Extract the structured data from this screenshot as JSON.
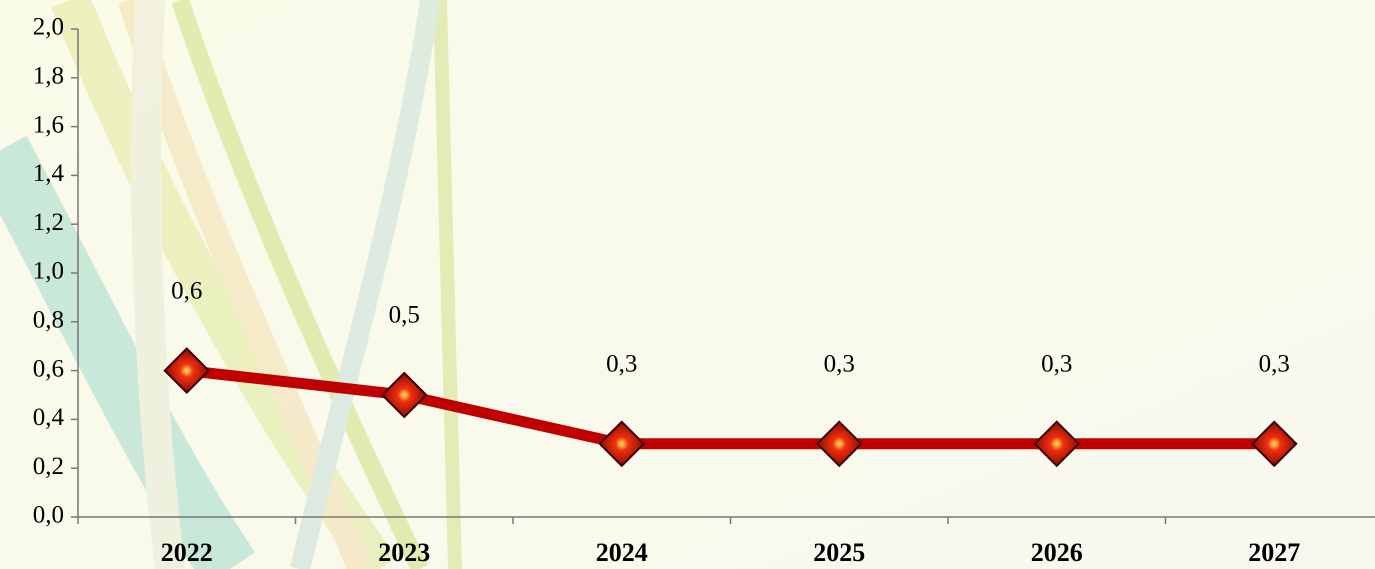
{
  "chart_data": {
    "type": "line",
    "categories": [
      "2022",
      "2023",
      "2024",
      "2025",
      "2026",
      "2027"
    ],
    "values": [
      0.6,
      0.5,
      0.3,
      0.3,
      0.3,
      0.3
    ],
    "value_labels": [
      "0,6",
      "0,5",
      "0,3",
      "0,3",
      "0,3",
      "0,3"
    ],
    "color": "#c00000",
    "ylim": [
      0,
      2.0
    ],
    "yticks": [
      {
        "value": 0,
        "label": "0,0"
      },
      {
        "value": 0.2,
        "label": "0,2"
      },
      {
        "value": 0.4,
        "label": "0,4"
      },
      {
        "value": 0.6,
        "label": "0,6"
      },
      {
        "value": 0.8,
        "label": "0,8"
      },
      {
        "value": 1.0,
        "label": "1,0"
      },
      {
        "value": 1.2,
        "label": "1,2"
      },
      {
        "value": 1.4,
        "label": "1,4"
      },
      {
        "value": 1.6,
        "label": "1,6"
      },
      {
        "value": 1.8,
        "label": "1,8"
      },
      {
        "value": 2.0,
        "label": "2,0"
      }
    ],
    "grid": false
  }
}
